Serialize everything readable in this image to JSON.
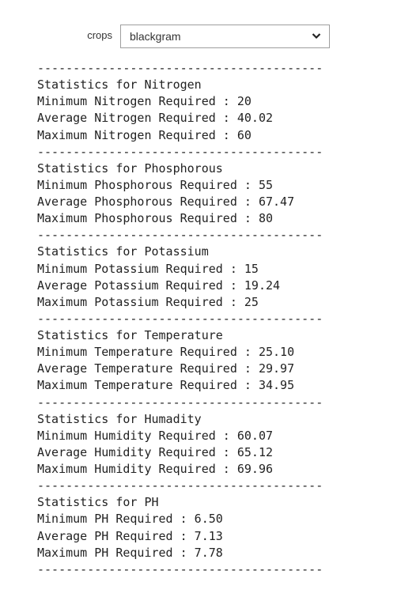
{
  "dropdown": {
    "label": "crops",
    "value": "blackgram"
  },
  "separator": "----------------------------------------",
  "sections": [
    {
      "heading": "Statistics for Nitrogen",
      "lines": [
        "Minimum Nitrogen Required : 20",
        "Average Nitrogen Required : 40.02",
        "Maximum Nitrogen Required : 60"
      ]
    },
    {
      "heading": "Statistics for Phosphorous",
      "lines": [
        "Minimum Phosphorous Required : 55",
        "Average Phosphorous Required : 67.47",
        "Maximum Phosphorous Required : 80"
      ]
    },
    {
      "heading": "Statistics for Potassium",
      "lines": [
        "Minimum Potassium Required : 15",
        "Average Potassium Required : 19.24",
        "Maximum Potassium Required : 25"
      ]
    },
    {
      "heading": "Statistics for Temperature",
      "lines": [
        "Minimum Temperature Required : 25.10",
        "Average Temperature Required : 29.97",
        "Maximum Temperature Required : 34.95"
      ]
    },
    {
      "heading": "Statistics for Humadity",
      "lines": [
        "Minimum Humidity Required : 60.07",
        "Average Humidity Required : 65.12",
        "Maximum Humidity Required : 69.96"
      ]
    },
    {
      "heading": "Statistics for PH",
      "lines": [
        "Minimum PH Required : 6.50",
        "Average PH Required : 7.13",
        "Maximum PH Required : 7.78"
      ]
    }
  ]
}
